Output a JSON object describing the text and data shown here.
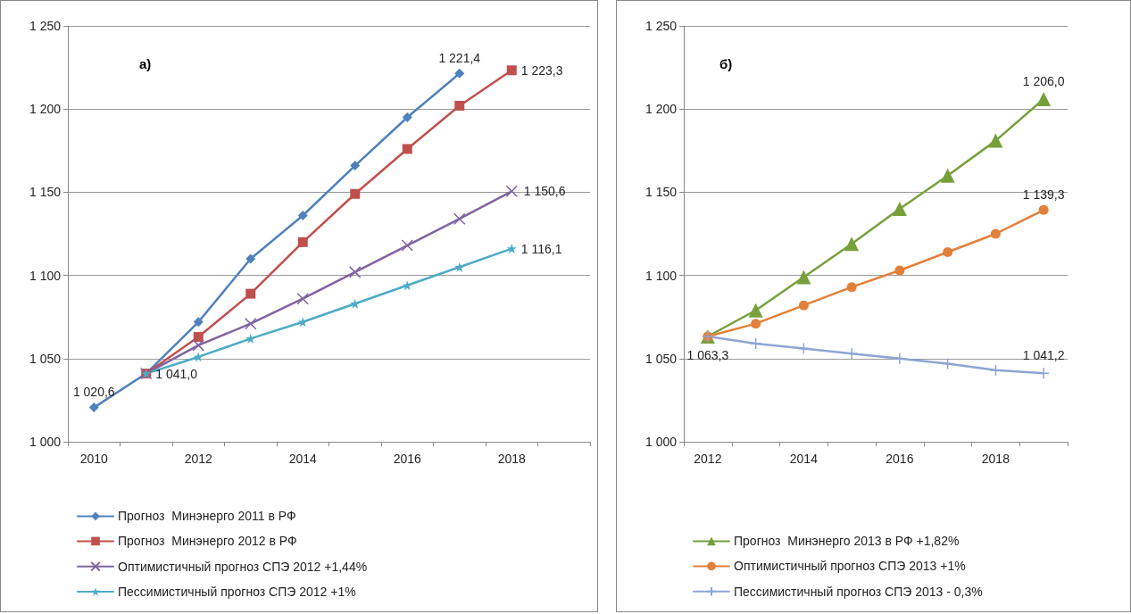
{
  "chart_data": [
    {
      "type": "line",
      "title": "а)",
      "categories": [
        "2010",
        null,
        "2012",
        null,
        "2014",
        null,
        "2016",
        null,
        "2018",
        null
      ],
      "ylim": [
        1000,
        1250
      ],
      "yticks": [
        {
          "value": 1000,
          "label": "1 000"
        },
        {
          "value": 1050,
          "label": "1 050"
        },
        {
          "value": 1100,
          "label": "1 100"
        },
        {
          "value": 1150,
          "label": "1 150"
        },
        {
          "value": 1200,
          "label": "1 200"
        },
        {
          "value": 1250,
          "label": "1 250"
        }
      ],
      "grid": "y",
      "legend": "bottom",
      "series": [
        {
          "name": "Прогноз  Минэнерго 2011 в РФ",
          "color": "#4f81bd",
          "marker": "diamond",
          "values": [
            1020.6,
            1041.0,
            1072,
            1110,
            1136,
            1166,
            1195,
            1221.4,
            null,
            null
          ],
          "value_labels": [
            "1 020,6",
            null,
            null,
            null,
            null,
            null,
            null,
            "1 221,4",
            null,
            null
          ]
        },
        {
          "name": "Прогноз  Минэнерго 2012 в РФ",
          "color": "#c0504d",
          "marker": "square",
          "values": [
            null,
            1041.0,
            1063,
            1089,
            1120,
            1149,
            1176,
            1202,
            1223.3,
            null
          ],
          "value_labels": [
            null,
            "1 041,0",
            null,
            null,
            null,
            null,
            null,
            null,
            "1 223,3",
            null
          ]
        },
        {
          "name": "Оптимистичный прогноз СПЭ 2012 +1,44%",
          "color": "#8064a2",
          "marker": "cross",
          "values": [
            null,
            1041.0,
            1058,
            1071,
            1086,
            1102,
            1118,
            1134,
            1150.6,
            null
          ],
          "value_labels": [
            null,
            null,
            null,
            null,
            null,
            null,
            null,
            null,
            "1 150,6",
            null
          ]
        },
        {
          "name": "Пессимистичный прогноз СПЭ 2012 +1%",
          "color": "#4bacc6",
          "marker": "star",
          "values": [
            null,
            1041.0,
            1051,
            1062,
            1072,
            1083,
            1094,
            1105,
            1116.1,
            null
          ],
          "value_labels": [
            null,
            null,
            null,
            null,
            null,
            null,
            null,
            null,
            "1 116,1",
            null
          ]
        }
      ]
    },
    {
      "type": "line",
      "title": "б)",
      "categories": [
        "2012",
        null,
        "2014",
        null,
        "2016",
        null,
        "2018",
        null
      ],
      "ylim": [
        1000,
        1250
      ],
      "yticks": [
        {
          "value": 1000,
          "label": "1 000"
        },
        {
          "value": 1050,
          "label": "1 050"
        },
        {
          "value": 1100,
          "label": "1 100"
        },
        {
          "value": 1150,
          "label": "1 150"
        },
        {
          "value": 1200,
          "label": "1 200"
        },
        {
          "value": 1250,
          "label": "1 250"
        }
      ],
      "grid": "y",
      "legend": "bottom",
      "series": [
        {
          "name": "Прогноз  Минэнерго 2013 в РФ +1,82%",
          "color": "#77a03b",
          "marker": "triangle",
          "values": [
            1063.3,
            1079,
            1099,
            1119,
            1140,
            1160,
            1181,
            1206.0
          ],
          "value_labels": [
            null,
            null,
            null,
            null,
            null,
            null,
            null,
            "1 206,0"
          ]
        },
        {
          "name": "Оптимистичный прогноз СПЭ 2013 +1%",
          "color": "#e2803a",
          "marker": "circle",
          "values": [
            1063.3,
            1071,
            1082,
            1093,
            1103,
            1114,
            1125,
            1139.3
          ],
          "value_labels": [
            null,
            null,
            null,
            null,
            null,
            null,
            null,
            "1 139,3"
          ]
        },
        {
          "name": "Пессимистичный прогноз СПЭ 2013 - 0,3%",
          "color": "#8ea5d4",
          "marker": "cross",
          "values": [
            1063.3,
            1059,
            1056,
            1053,
            1050,
            1047,
            1043,
            1041.2
          ],
          "value_labels": [
            "1 063,3",
            null,
            null,
            null,
            null,
            null,
            null,
            "1 041,2"
          ]
        }
      ]
    }
  ]
}
